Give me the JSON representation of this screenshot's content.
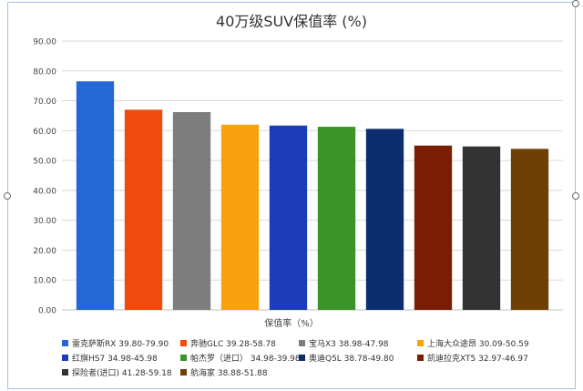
{
  "chart_data": {
    "type": "bar",
    "title": "40万级SUV保值率 (%)",
    "xlabel": "保值率（%）",
    "ylabel": "",
    "ylim": [
      0,
      90
    ],
    "yticks": [
      "0.00",
      "10.00",
      "20.00",
      "30.00",
      "40.00",
      "50.00",
      "60.00",
      "70.00",
      "80.00",
      "90.00"
    ],
    "grid": true,
    "legend_position": "bottom",
    "series": [
      {
        "name": "雷克萨斯RX 39.80-79.90",
        "value": 76.5,
        "color": "#2468d6"
      },
      {
        "name": "奔驰GLC 39.28-58.78",
        "value": 67.0,
        "color": "#f04a0c"
      },
      {
        "name": "宝马X3  38.98-47.98",
        "value": 66.2,
        "color": "#7d7d7d"
      },
      {
        "name": "上海大众途昂 30.09-50.59",
        "value": 62.0,
        "color": "#f9a10c"
      },
      {
        "name": "红旗HS7 34.98-45.98",
        "value": 61.7,
        "color": "#1c3cb8"
      },
      {
        "name": "帕杰罗（进口） 34.98-39.98",
        "value": 61.3,
        "color": "#3b9427"
      },
      {
        "name": "奥迪Q5L  38.78-49.80",
        "value": 60.6,
        "color": "#0c2e6e"
      },
      {
        "name": "凯迪拉克XT5  32.97-46.97",
        "value": 55.0,
        "color": "#7a1d05"
      },
      {
        "name": "探险者(进口) 41.28-59.18",
        "value": 54.7,
        "color": "#333333"
      },
      {
        "name": "航海家 38.88-51.88",
        "value": 53.9,
        "color": "#6e4004"
      }
    ]
  }
}
